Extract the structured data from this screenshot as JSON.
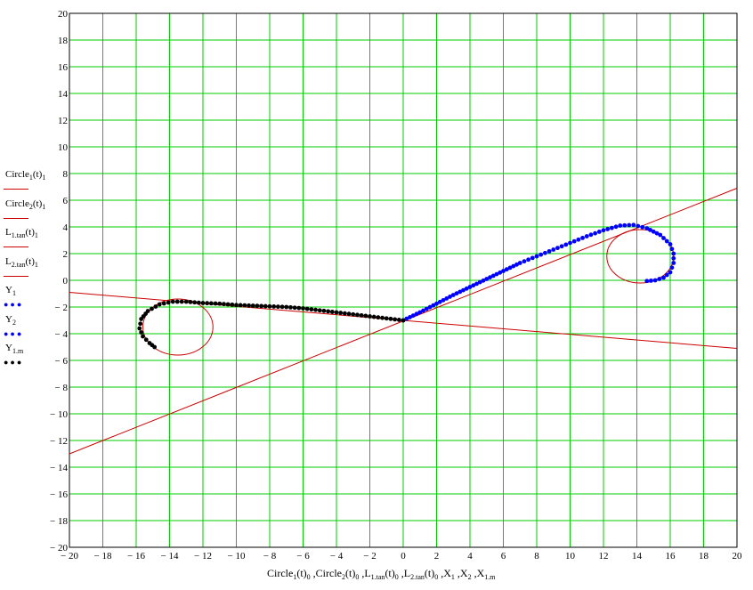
{
  "chart_data": {
    "type": "line",
    "xlim": [
      -20,
      20
    ],
    "ylim": [
      -20,
      20
    ],
    "xticks": [
      -20,
      -18,
      -16,
      -14,
      -12,
      -10,
      -8,
      -6,
      -4,
      -2,
      0,
      2,
      4,
      6,
      8,
      10,
      12,
      14,
      16,
      18,
      20
    ],
    "yticks": [
      -20,
      -18,
      -16,
      -14,
      -12,
      -10,
      -8,
      -6,
      -4,
      -2,
      0,
      2,
      4,
      6,
      8,
      10,
      12,
      14,
      16,
      18,
      20
    ],
    "grid": true,
    "grid_color": "#00cc00",
    "legend_placement": "left",
    "xlabel": "Circle1(t)0 ,Circle2(t)0 ,L1.tan(t)0 ,L2.tan(t)0 ,X1 ,X2 ,X1.m",
    "series": [
      {
        "name": "Circle1(t)1",
        "style": "line",
        "color": "#cc0000",
        "shape": "circle",
        "center": [
          -13.5,
          -3.5
        ],
        "radius": 2.1
      },
      {
        "name": "Circle2(t)1",
        "style": "line",
        "color": "#cc0000",
        "shape": "circle",
        "center": [
          14.2,
          1.8
        ],
        "radius": 2.0
      },
      {
        "name": "L1.tan(t)1",
        "style": "line",
        "color": "#cc0000",
        "x": [
          -20,
          20
        ],
        "y": [
          -0.9,
          -5.1
        ]
      },
      {
        "name": "L2.tan(t)1",
        "style": "line",
        "color": "#cc0000",
        "x": [
          -20,
          20
        ],
        "y": [
          -13.0,
          6.9
        ]
      },
      {
        "name": "Y1",
        "style": "dots",
        "color": "#0000ff",
        "x": [
          0,
          1,
          2,
          3,
          4,
          5,
          6,
          7,
          8,
          9,
          10,
          11,
          12,
          13,
          13.8,
          14.6,
          15.4,
          16.0,
          16.2,
          16.2,
          16.0,
          15.6,
          15.1,
          14.6
        ],
        "y": [
          -3.0,
          -2.4,
          -1.75,
          -1.1,
          -0.5,
          0.1,
          0.7,
          1.3,
          1.8,
          2.3,
          2.8,
          3.3,
          3.75,
          4.1,
          4.15,
          3.9,
          3.4,
          2.7,
          2.0,
          1.3,
          0.6,
          0.2,
          0.0,
          -0.05
        ],
        "note": "interpolated"
      },
      {
        "name": "Y2",
        "style": "dots",
        "color": "#0000ff",
        "x": [],
        "y": []
      },
      {
        "name": "Y1.m",
        "style": "dots",
        "color": "#000000",
        "x": [
          0,
          -1,
          -2,
          -3,
          -4,
          -5,
          -6,
          -7,
          -8,
          -9,
          -10,
          -11,
          -12,
          -13,
          -13.8,
          -14.6,
          -15.3,
          -15.7,
          -15.8,
          -15.6,
          -15.2,
          -14.9
        ],
        "y": [
          -3.0,
          -2.85,
          -2.7,
          -2.55,
          -2.4,
          -2.25,
          -2.1,
          -2.0,
          -1.95,
          -1.9,
          -1.85,
          -1.75,
          -1.7,
          -1.6,
          -1.6,
          -1.8,
          -2.3,
          -2.9,
          -3.6,
          -4.2,
          -4.7,
          -5.0
        ],
        "note": "interpolated"
      }
    ]
  },
  "legend": [
    {
      "base": "Circle",
      "sub": "1",
      "mid": "(t)",
      "sub2": "1",
      "kind": "line"
    },
    {
      "base": "Circle",
      "sub": "2",
      "mid": "(t)",
      "sub2": "1",
      "kind": "line"
    },
    {
      "base": "L",
      "sub": "1.tan",
      "mid": "(t)",
      "sub2": "1",
      "kind": "line"
    },
    {
      "base": "L",
      "sub": "2.tan",
      "mid": "(t)",
      "sub2": "1",
      "kind": "line"
    },
    {
      "base": "Y",
      "sub": "1",
      "mid": "",
      "sub2": "",
      "kind": "blue-dots"
    },
    {
      "base": "Y",
      "sub": "2",
      "mid": "",
      "sub2": "",
      "kind": "blue-dots"
    },
    {
      "base": "Y",
      "sub": "1.m",
      "mid": "",
      "sub2": "",
      "kind": "black-dots"
    }
  ]
}
